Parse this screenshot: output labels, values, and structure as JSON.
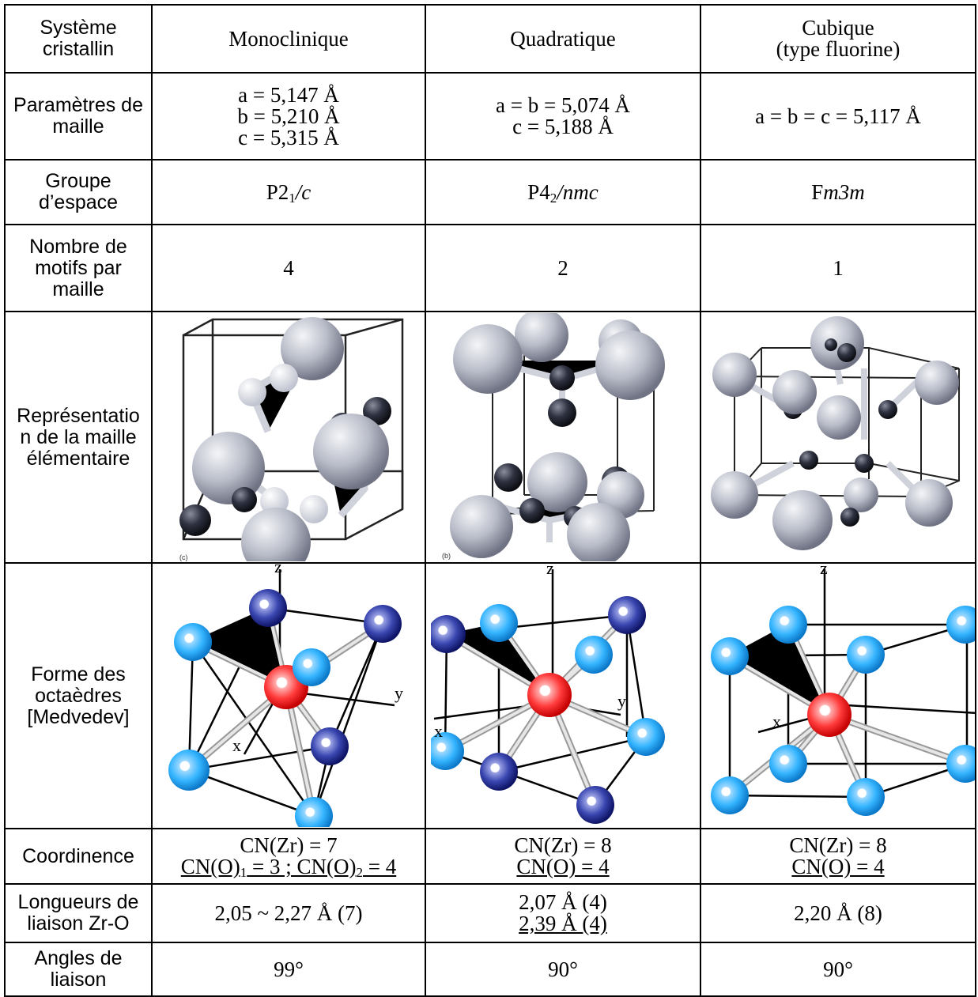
{
  "row_header": {
    "system": "Système cristallin",
    "params": "Paramètres de maille",
    "group": "Groupe d’espace",
    "motifs": "Nombre de motifs par maille",
    "representation": "Représentatio n de la maille élémentaire",
    "octa_line1": "Forme des",
    "octa_line2": "octaèdres",
    "octa_line3": "[Medvedev]",
    "coord": "Coordinence",
    "lengths": "Longueurs de liaison Zr-O",
    "angles": "Angles de liaison"
  },
  "systems": {
    "mono": "Monoclinique",
    "quad": "Quadratique",
    "cub_line1": "Cubique",
    "cub_line2": "(type fluorine)"
  },
  "params": {
    "mono_a": "a =  5,147 Å",
    "mono_b": "b = 5,210 Å",
    "mono_c": "c = 5,315 Å",
    "quad_ab": "a =  b = 5,074 Å",
    "quad_c": "c = 5,188 Å",
    "cub": "a = b = c = 5,117 Å"
  },
  "groups": {
    "mono_pre": "P2",
    "mono_sub": "1",
    "mono_post": "/c",
    "quad_pre": "P4",
    "quad_sub": "2",
    "quad_post": "/nmc",
    "cub_pre": "F",
    "cub_post": "m3m"
  },
  "motifs": {
    "mono": "4",
    "quad": "2",
    "cub": "1"
  },
  "unit_cell_labels": {
    "mono": "(c)",
    "quad": "(b)"
  },
  "axes": {
    "z": "z",
    "y": "y",
    "x": "x"
  },
  "coordination": {
    "mono_zr": "CN(Zr) = 7",
    "mono_o_a": "CN(O)",
    "mono_o_sub1": "1",
    "mono_o_b": " = 3 ; CN(O)",
    "mono_o_sub2": "2",
    "mono_o_c": " = 4",
    "quad_zr": "CN(Zr) = 8",
    "quad_o": "CN(O) = 4",
    "cub_zr": "CN(Zr) = 8",
    "cub_o": "CN(O) = 4"
  },
  "lengths": {
    "mono": "2,05 ~ 2,27 Å (7)",
    "quad_1": "2,07 Å (4)",
    "quad_2": "2,39 Å (4)",
    "cub": "2,20 Å (8)"
  },
  "angles": {
    "mono": "99°",
    "quad": "90°",
    "cub": "90°"
  },
  "colors": {
    "zr_sphere": "#b8bcc8",
    "o_sphere": "#2e3140",
    "o_light": "#e2e5ee",
    "center_red": "#ff2a2a",
    "light_blue": "#35b5ff",
    "dark_blue": "#1e2a8f",
    "bond": "#b4b4b4"
  }
}
